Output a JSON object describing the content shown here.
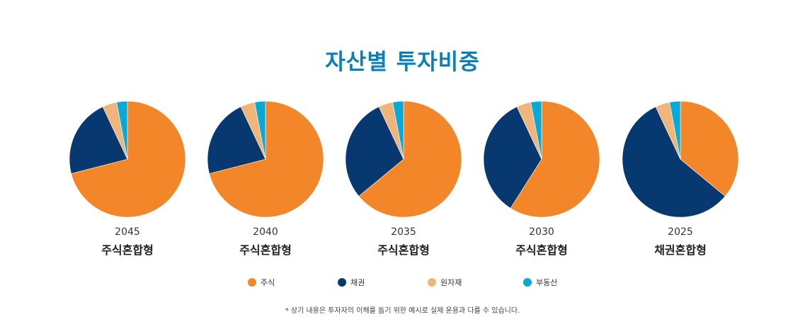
{
  "title": "자산별 투자비중",
  "colors": {
    "title": "#0a7fb8",
    "주식": "#f4862a",
    "채권": "#073970",
    "원자재": "#f0b57a",
    "부동산": "#0aa9d4"
  },
  "chart_data": [
    {
      "type": "pie",
      "year": "2045",
      "name": "주식혼합형",
      "slices": [
        {
          "label": "주식",
          "value": 71
        },
        {
          "label": "채권",
          "value": 22
        },
        {
          "label": "원자재",
          "value": 4
        },
        {
          "label": "부동산",
          "value": 3
        }
      ]
    },
    {
      "type": "pie",
      "year": "2040",
      "name": "주식혼합형",
      "slices": [
        {
          "label": "주식",
          "value": 71
        },
        {
          "label": "채권",
          "value": 22
        },
        {
          "label": "원자재",
          "value": 4
        },
        {
          "label": "부동산",
          "value": 3
        }
      ]
    },
    {
      "type": "pie",
      "year": "2035",
      "name": "주식혼합형",
      "slices": [
        {
          "label": "주식",
          "value": 64
        },
        {
          "label": "채권",
          "value": 29
        },
        {
          "label": "원자재",
          "value": 4
        },
        {
          "label": "부동산",
          "value": 3
        }
      ]
    },
    {
      "type": "pie",
      "year": "2030",
      "name": "주식혼합형",
      "slices": [
        {
          "label": "주식",
          "value": 59
        },
        {
          "label": "채권",
          "value": 34
        },
        {
          "label": "원자재",
          "value": 4
        },
        {
          "label": "부동산",
          "value": 3
        }
      ]
    },
    {
      "type": "pie",
      "year": "2025",
      "name": "채권혼합형",
      "slices": [
        {
          "label": "주식",
          "value": 36
        },
        {
          "label": "채권",
          "value": 57
        },
        {
          "label": "원자재",
          "value": 4
        },
        {
          "label": "부동산",
          "value": 3
        }
      ]
    }
  ],
  "legend": [
    {
      "label": "주식",
      "color": "#f4862a"
    },
    {
      "label": "채권",
      "color": "#073970"
    },
    {
      "label": "원자재",
      "color": "#f0b57a"
    },
    {
      "label": "부동산",
      "color": "#0aa9d4"
    }
  ],
  "footnote": "* 상기 내용은 투자자의 이해를 돕기 위한 예시로 실제 운용과 다를 수 있습니다."
}
